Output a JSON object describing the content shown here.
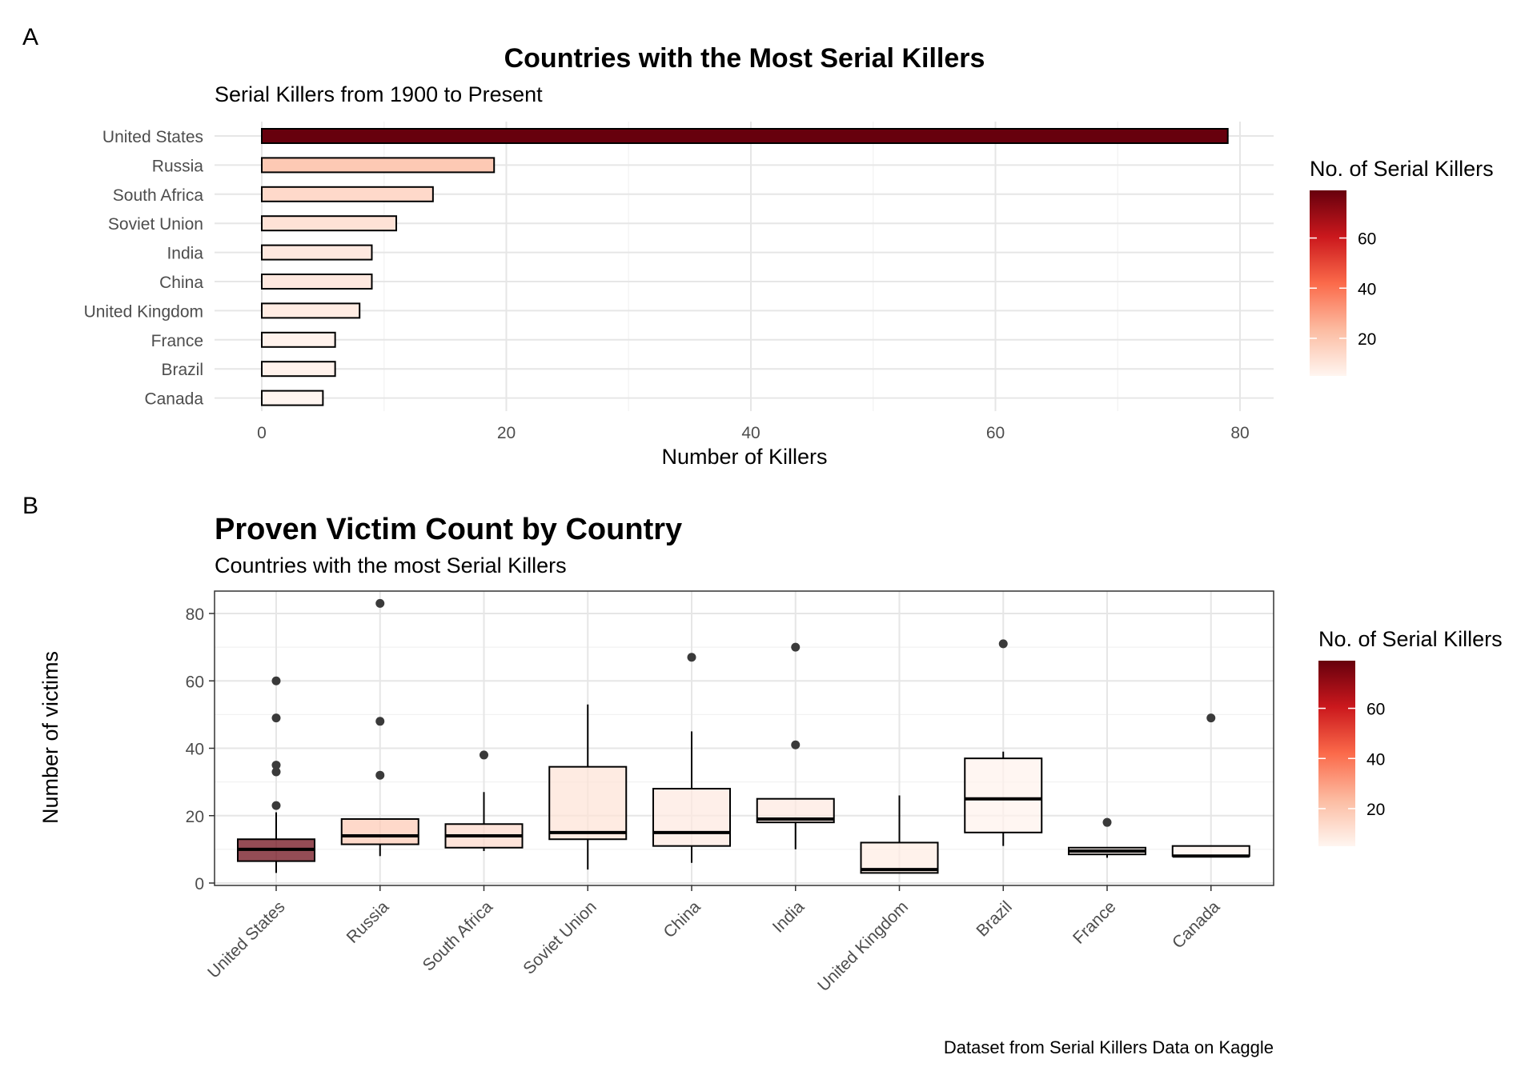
{
  "panel_labels": [
    "A",
    "B"
  ],
  "caption": "Dataset from Serial Killers Data on Kaggle",
  "colors": {
    "low": "#fff5f0",
    "mid": "#fb6a4a",
    "high": "#67000d",
    "grid": "#ebebeb",
    "outline": "#000000",
    "point": "#3a3a3a"
  },
  "chart_data": [
    {
      "type": "bar",
      "orientation": "horizontal",
      "title": "Countries with the Most Serial Killers",
      "subtitle": "Serial Killers from 1900 to Present",
      "xlabel": "Number of Killers",
      "ylabel": "",
      "xlim": [
        0,
        80
      ],
      "xticks": [
        0,
        20,
        40,
        60,
        80
      ],
      "xtick_labels": [
        "0",
        "20",
        "40",
        "60",
        "80"
      ],
      "categories": [
        "United States",
        "Russia",
        "South Africa",
        "Soviet Union",
        "India",
        "China",
        "United Kingdom",
        "France",
        "Brazil",
        "Canada"
      ],
      "values": [
        79,
        19,
        14,
        11,
        9,
        9,
        8,
        6,
        6,
        5
      ],
      "fill_by": "value",
      "grid": true,
      "legend": {
        "title": "No. of Serial Killers",
        "ticks": [
          20,
          40,
          60
        ],
        "tick_labels": [
          "20",
          "40",
          "60"
        ],
        "range": [
          5,
          79
        ],
        "placement": "right"
      }
    },
    {
      "type": "box",
      "title": "Proven Victim Count by Country",
      "subtitle": "Countries with the most Serial Killers",
      "xlabel": "",
      "ylabel": "Number of victims",
      "ylim": [
        0,
        85
      ],
      "yticks": [
        0,
        20,
        40,
        60,
        80
      ],
      "ytick_labels": [
        "0",
        "20",
        "40",
        "60",
        "80"
      ],
      "categories": [
        "United States",
        "Russia",
        "South Africa",
        "Soviet Union",
        "China",
        "India",
        "United Kingdom",
        "Brazil",
        "France",
        "Canada"
      ],
      "boxes": [
        {
          "lower": 3,
          "q1": 6.5,
          "median": 10,
          "q3": 13,
          "upper": 21,
          "outliers": [
            23,
            33,
            35,
            49,
            60
          ],
          "killers": 79
        },
        {
          "lower": 8,
          "q1": 11.5,
          "median": 14,
          "q3": 19,
          "upper": 19,
          "outliers": [
            32,
            48,
            83
          ],
          "killers": 19
        },
        {
          "lower": 9.5,
          "q1": 10.5,
          "median": 14,
          "q3": 17.5,
          "upper": 27,
          "outliers": [
            38
          ],
          "killers": 14
        },
        {
          "lower": 4,
          "q1": 13,
          "median": 15,
          "q3": 34.5,
          "upper": 53,
          "outliers": [],
          "killers": 11
        },
        {
          "lower": 6,
          "q1": 11,
          "median": 15,
          "q3": 28,
          "upper": 45,
          "outliers": [
            67
          ],
          "killers": 9
        },
        {
          "lower": 10,
          "q1": 18,
          "median": 19,
          "q3": 25,
          "upper": 25,
          "outliers": [
            41,
            70
          ],
          "killers": 9
        },
        {
          "lower": 3,
          "q1": 3,
          "median": 4,
          "q3": 12,
          "upper": 26,
          "outliers": [],
          "killers": 8
        },
        {
          "lower": 11,
          "q1": 15,
          "median": 25,
          "q3": 37,
          "upper": 39,
          "outliers": [
            71
          ],
          "killers": 6
        },
        {
          "lower": 7.5,
          "q1": 8.5,
          "median": 9.5,
          "q3": 10.5,
          "upper": 10.5,
          "outliers": [
            18
          ],
          "killers": 6
        },
        {
          "lower": 8,
          "q1": 8,
          "median": 8,
          "q3": 11,
          "upper": 11,
          "outliers": [
            49
          ],
          "killers": 5
        }
      ],
      "fill_by": "killers",
      "grid": true,
      "legend": {
        "title": "No. of Serial Killers",
        "ticks": [
          20,
          40,
          60
        ],
        "tick_labels": [
          "20",
          "40",
          "60"
        ],
        "range": [
          5,
          79
        ],
        "placement": "right"
      }
    }
  ]
}
